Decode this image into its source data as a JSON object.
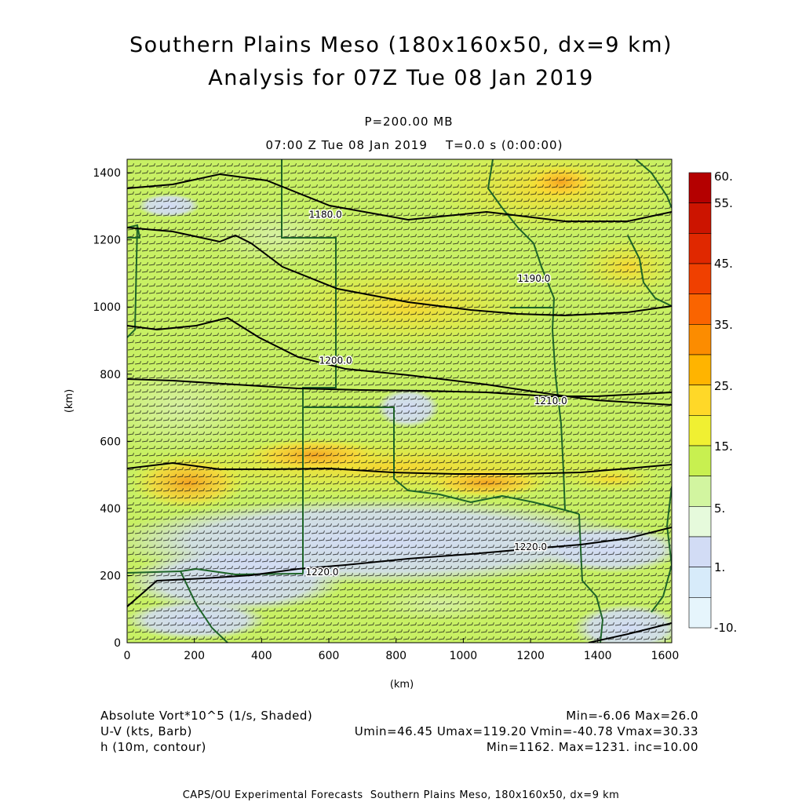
{
  "title_line1": "Southern Plains Meso (180x160x50, dx=9 km)",
  "title_line2": "Analysis for 07Z Tue 08 Jan 2019",
  "level": "P=200.00 MB",
  "valid_time": "07:00 Z Tue 08 Jan 2019    T=0.0 s (0:00:00)",
  "axes": {
    "x_label": "(km)",
    "y_label": "(km)",
    "x_ticks": [
      0,
      200,
      400,
      600,
      800,
      1000,
      1200,
      1400,
      1600
    ],
    "y_ticks": [
      0,
      200,
      400,
      600,
      800,
      1000,
      1200,
      1400
    ],
    "x_range": [
      0,
      1620
    ],
    "y_range": [
      0,
      1440
    ]
  },
  "colorbar": {
    "labels": [
      "60.",
      "55.",
      "45.",
      "35.",
      "25.",
      "15.",
      "5.",
      "1.",
      "-10."
    ],
    "colors": [
      "#b40000",
      "#cc1400",
      "#e02800",
      "#f04000",
      "#fa6400",
      "#fc8c00",
      "#ffb400",
      "#ffd828",
      "#f0f032",
      "#c8f050",
      "#d2f5a0",
      "#e6fadc",
      "#d2dcf5",
      "#d7ebfa",
      "#e6f5fc"
    ]
  },
  "contours": [
    {
      "label": "1180.0",
      "label_x": 590,
      "label_y": 1275
    },
    {
      "label": "1190.0",
      "label_x": 1210,
      "label_y": 1085
    },
    {
      "label": "1200.0",
      "label_x": 620,
      "label_y": 840
    },
    {
      "label": "1210.0",
      "label_x": 1260,
      "label_y": 720
    },
    {
      "label": "1220.0",
      "label_x": 1200,
      "label_y": 285
    },
    {
      "label": "1220.0",
      "label_x": 580,
      "label_y": 210
    }
  ],
  "legend": {
    "field1": "Absolute Vort*10^5 (1/s, Shaded)",
    "field2": "U-V (kts, Barb)",
    "field3": "h (10m, contour)",
    "stats1": "Min=-6.06 Max=26.0",
    "stats2": "Umin=46.45 Umax=119.20 Vmin=-40.78 Vmax=30.33",
    "stats3": "Min=1162. Max=1231. inc=10.00"
  },
  "footer": "CAPS/OU Experimental Forecasts  Southern Plains Meso, 180x160x50, dx=9 km"
}
